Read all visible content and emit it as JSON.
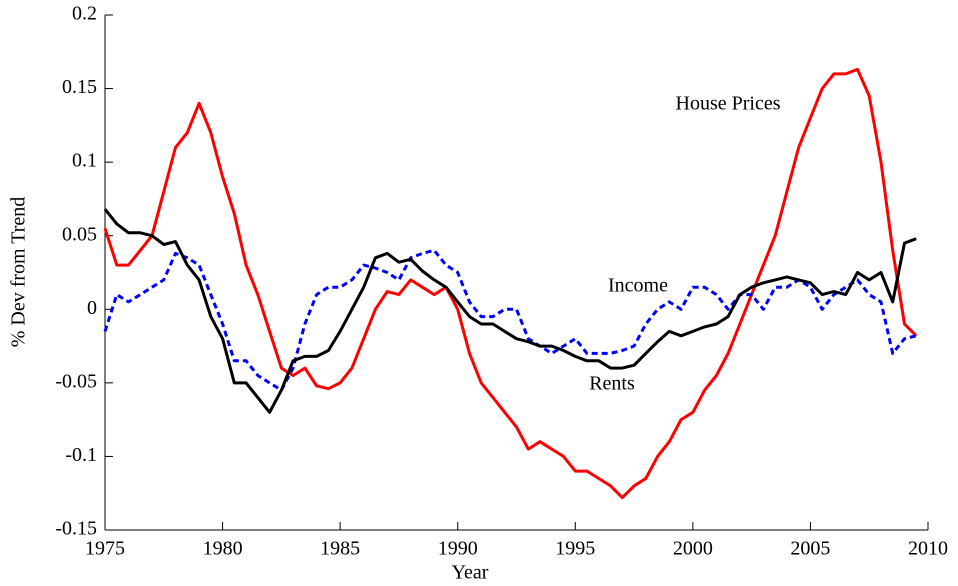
{
  "chart_data": {
    "type": "line",
    "x_label": "Year",
    "y_label": "% Dev from Trend",
    "x": [
      1975,
      1975.5,
      1976,
      1976.5,
      1977,
      1977.5,
      1978,
      1978.5,
      1979,
      1979.5,
      1980,
      1980.5,
      1981,
      1981.5,
      1982,
      1982.5,
      1983,
      1983.5,
      1984,
      1984.5,
      1985,
      1985.5,
      1986,
      1986.5,
      1987,
      1987.5,
      1988,
      1988.5,
      1989,
      1989.5,
      1990,
      1990.5,
      1991,
      1991.5,
      1992,
      1992.5,
      1993,
      1993.5,
      1994,
      1994.5,
      1995,
      1995.5,
      1996,
      1996.5,
      1997,
      1997.5,
      1998,
      1998.5,
      1999,
      1999.5,
      2000,
      2000.5,
      2001,
      2001.5,
      2002,
      2002.5,
      2003,
      2003.5,
      2004,
      2004.5,
      2005,
      2005.5,
      2006,
      2006.5,
      2007,
      2007.5,
      2008,
      2008.5,
      2009,
      2009.5
    ],
    "series": [
      {
        "name": "House Prices",
        "color": "#ff0000",
        "dash": false,
        "values": [
          0.055,
          0.03,
          0.03,
          0.04,
          0.05,
          0.08,
          0.11,
          0.12,
          0.14,
          0.12,
          0.09,
          0.065,
          0.03,
          0.01,
          -0.015,
          -0.04,
          -0.045,
          -0.04,
          -0.052,
          -0.054,
          -0.05,
          -0.04,
          -0.02,
          0,
          0.012,
          0.01,
          0.02,
          0.015,
          0.01,
          0.015,
          0,
          -0.03,
          -0.05,
          -0.06,
          -0.07,
          -0.08,
          -0.095,
          -0.09,
          -0.095,
          -0.1,
          -0.11,
          -0.11,
          -0.115,
          -0.12,
          -0.128,
          -0.12,
          -0.115,
          -0.1,
          -0.09,
          -0.075,
          -0.07,
          -0.055,
          -0.045,
          -0.03,
          -0.01,
          0.01,
          0.03,
          0.05,
          0.08,
          0.11,
          0.13,
          0.15,
          0.16,
          0.16,
          0.163,
          0.145,
          0.1,
          0.04,
          -0.01,
          -0.018
        ]
      },
      {
        "name": "Income",
        "color": "#0000ff",
        "dash": true,
        "values": [
          -0.015,
          0.01,
          0.005,
          0.01,
          0.015,
          0.02,
          0.038,
          0.035,
          0.03,
          0.01,
          -0.01,
          -0.035,
          -0.035,
          -0.045,
          -0.05,
          -0.055,
          -0.04,
          -0.01,
          0.01,
          0.015,
          0.015,
          0.02,
          0.03,
          0.028,
          0.025,
          0.02,
          0.035,
          0.038,
          0.04,
          0.03,
          0.025,
          0.005,
          -0.005,
          -0.005,
          0,
          0,
          -0.02,
          -0.025,
          -0.03,
          -0.025,
          -0.02,
          -0.03,
          -0.03,
          -0.03,
          -0.028,
          -0.025,
          -0.01,
          0,
          0.005,
          0,
          0.015,
          0.015,
          0.01,
          0,
          0.01,
          0.01,
          0,
          0.015,
          0.015,
          0.02,
          0.015,
          0,
          0.01,
          0.015,
          0.02,
          0.01,
          0.005,
          -0.03,
          -0.02,
          -0.018
        ]
      },
      {
        "name": "Rents",
        "color": "#000000",
        "dash": false,
        "values": [
          0.068,
          0.058,
          0.052,
          0.052,
          0.05,
          0.044,
          0.046,
          0.03,
          0.02,
          -0.005,
          -0.02,
          -0.05,
          -0.05,
          -0.06,
          -0.07,
          -0.055,
          -0.035,
          -0.032,
          -0.032,
          -0.028,
          -0.015,
          0,
          0.015,
          0.035,
          0.038,
          0.032,
          0.034,
          0.026,
          0.02,
          0.015,
          0.005,
          -0.005,
          -0.01,
          -0.01,
          -0.015,
          -0.02,
          -0.022,
          -0.025,
          -0.025,
          -0.028,
          -0.032,
          -0.035,
          -0.035,
          -0.04,
          -0.04,
          -0.038,
          -0.03,
          -0.022,
          -0.015,
          -0.018,
          -0.015,
          -0.012,
          -0.01,
          -0.005,
          0.01,
          0.015,
          0.018,
          0.02,
          0.022,
          0.02,
          0.018,
          0.01,
          0.012,
          0.01,
          0.025,
          0.02,
          0.025,
          0.005,
          0.045,
          0.048
        ]
      }
    ],
    "xlim": [
      1975,
      2010
    ],
    "xticks": [
      1975,
      1980,
      1985,
      1990,
      1995,
      2000,
      2005,
      2010
    ],
    "ylim": [
      -0.15,
      0.2
    ],
    "yticks": [
      -0.15,
      -0.1,
      -0.05,
      0,
      0.05,
      0.1,
      0.15,
      0.2
    ]
  }
}
